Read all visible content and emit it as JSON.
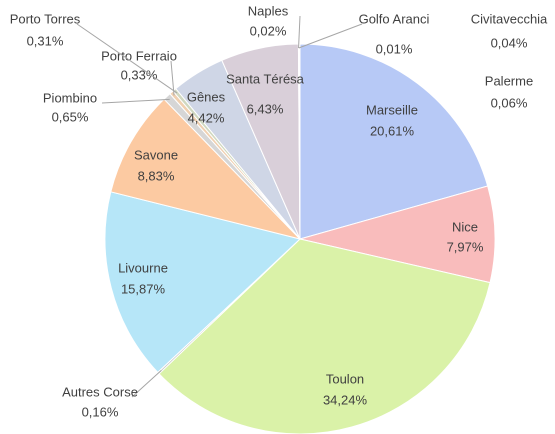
{
  "chart_data": {
    "type": "pie",
    "categories": [
      "Marseille",
      "Nice",
      "Toulon",
      "Autres Corse",
      "Livourne",
      "Savone",
      "Piombino",
      "Porto Ferraio",
      "Porto Torres",
      "Gênes",
      "Santa Térésa",
      "Naples",
      "Golfo Aranci",
      "Civitavecchia",
      "Palerme"
    ],
    "values": [
      20.61,
      7.97,
      34.24,
      0.16,
      15.87,
      8.83,
      0.65,
      0.33,
      0.31,
      4.42,
      6.43,
      0.02,
      0.01,
      0.04,
      0.06
    ],
    "value_labels": [
      "20,61%",
      "7,97%",
      "34,24%",
      "0,16%",
      "15,87%",
      "8,83%",
      "0,65%",
      "0,33%",
      "0,31%",
      "4,42%",
      "6,43%",
      "0,02%",
      "0,01%",
      "0,04%",
      "0,06%"
    ],
    "colors": [
      "#b7c9f6",
      "#f9bcbc",
      "#daf2a8",
      "#c8c8c8",
      "#b6e6f8",
      "#fccaa2",
      "#d6d6d6",
      "#f0d0b0",
      "#d0d8c0",
      "#cfd6e6",
      "#d9cfd9",
      "#c0c8e0",
      "#e0c0c0",
      "#c0e0c0",
      "#e0d0a0"
    ]
  }
}
